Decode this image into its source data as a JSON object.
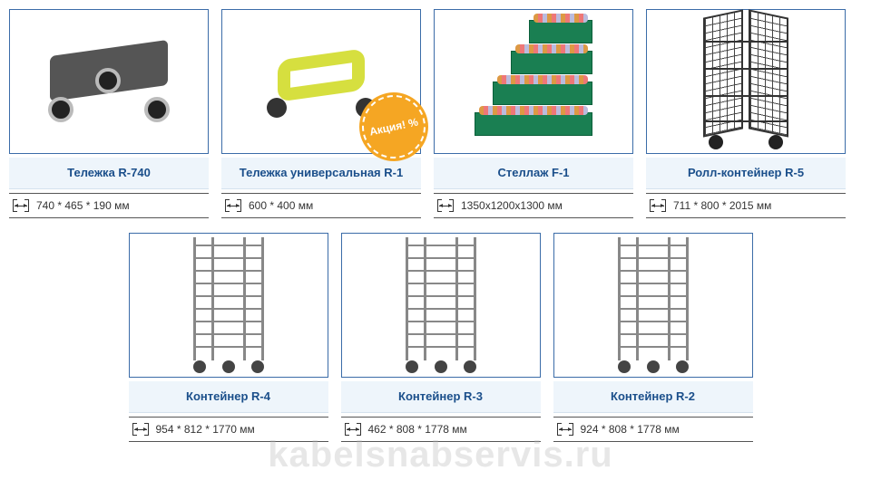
{
  "badge_text": "Акция! %",
  "watermark": "kabelsnabservis.ru",
  "products_row1": [
    {
      "title": "Тележка R-740",
      "dims": "740 * 465 * 190 мм",
      "kind": "dolly"
    },
    {
      "title": "Тележка универсальная R-1",
      "dims": "600 * 400 мм",
      "kind": "uni",
      "badge": true
    },
    {
      "title": "Стеллаж F-1",
      "dims": "1350x1200x1300 мм",
      "kind": "shelf"
    },
    {
      "title": "Ролл-контейнер R-5",
      "dims": "711 * 800 * 2015 мм",
      "kind": "roll"
    }
  ],
  "products_row2": [
    {
      "title": "Контейнер R-4",
      "dims": "954 * 812 * 1770 мм",
      "kind": "rack"
    },
    {
      "title": "Контейнер R-3",
      "dims": "462 * 808 * 1778 мм",
      "kind": "rack"
    },
    {
      "title": "Контейнер R-2",
      "dims": "924 * 808 * 1778 мм",
      "kind": "rack"
    }
  ],
  "colors": {
    "card_border": "#3b6ca8",
    "title_bg": "#eef5fb",
    "title_text": "#1b4f8b",
    "badge_bg": "#f5a623"
  }
}
